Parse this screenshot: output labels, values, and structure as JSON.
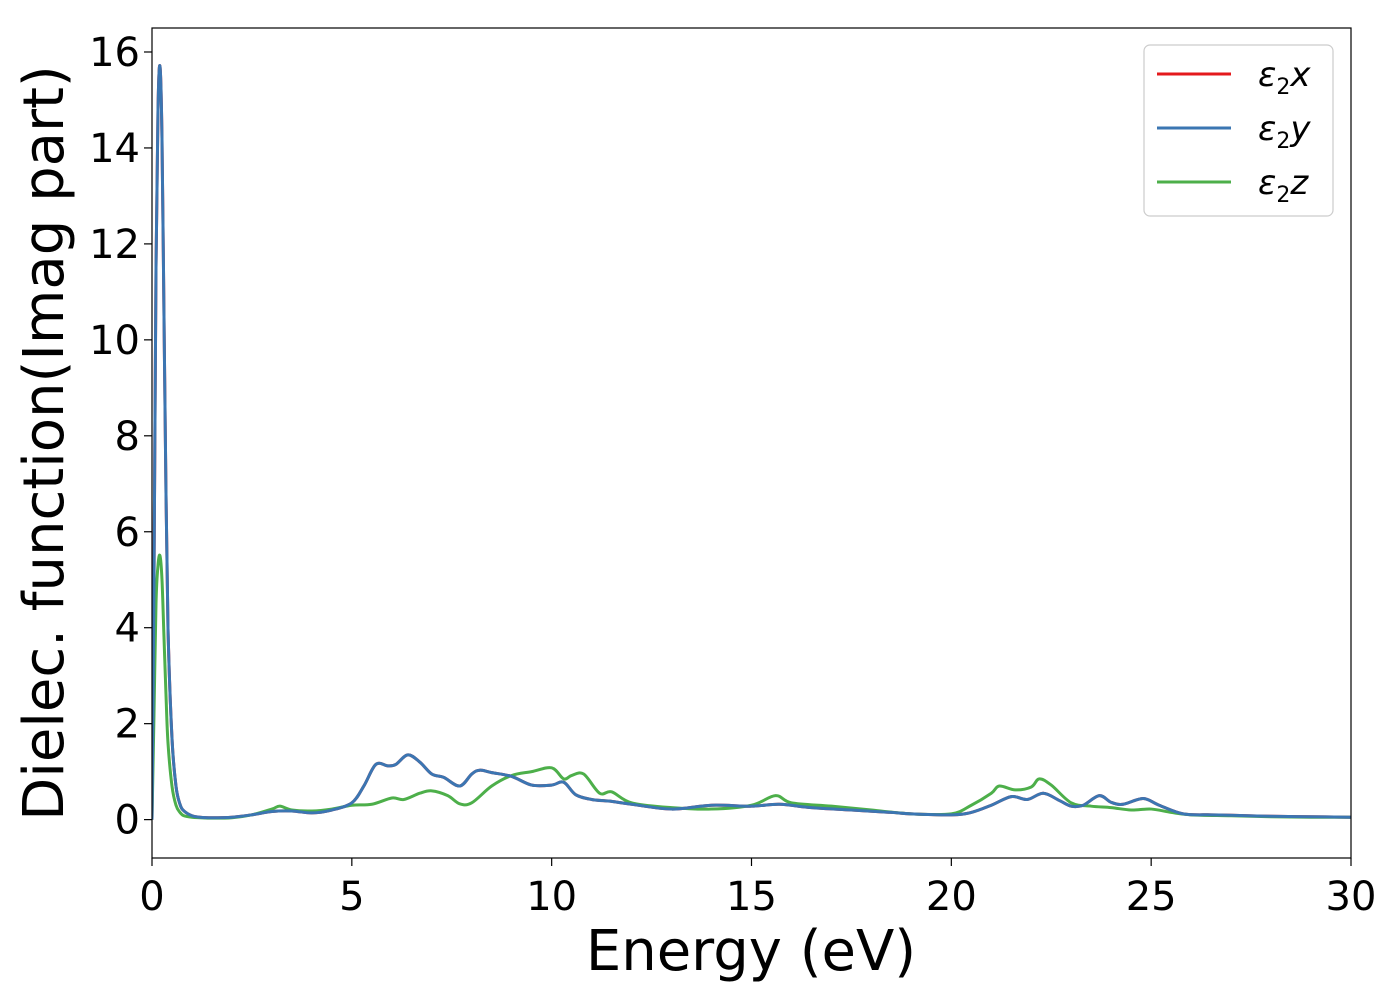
{
  "chart_data": {
    "type": "line",
    "xlabel": "Energy (eV)",
    "ylabel": "Dielec. function(Imag part)",
    "xlim": [
      0,
      30
    ],
    "ylim": [
      -0.8,
      16.5
    ],
    "xticks": [
      0,
      5,
      10,
      15,
      20,
      25,
      30
    ],
    "yticks": [
      0,
      2,
      4,
      6,
      8,
      10,
      12,
      14,
      16
    ],
    "grid": false,
    "legend_position": "top-right",
    "series": [
      {
        "name": "ε2x",
        "legend_symbol": "ε",
        "legend_subscript": "2",
        "legend_var": "x",
        "color": "#e41a1c",
        "x": [
          0,
          0.05,
          0.1,
          0.15,
          0.2,
          0.25,
          0.3,
          0.35,
          0.4,
          0.5,
          0.6,
          0.7,
          0.8,
          1.0,
          1.2,
          1.5,
          2.0,
          2.5,
          3.0,
          3.5,
          4.0,
          4.5,
          5.0,
          5.3,
          5.6,
          5.9,
          6.1,
          6.4,
          6.7,
          7.0,
          7.3,
          7.7,
          8.0,
          8.2,
          8.5,
          9.0,
          9.5,
          10.0,
          10.3,
          10.6,
          11.0,
          11.5,
          12.0,
          13.0,
          14.0,
          15.0,
          15.7,
          16.5,
          17.5,
          18.5,
          19.0,
          20.0,
          20.5,
          21.0,
          21.5,
          21.9,
          22.3,
          22.7,
          23.0,
          23.3,
          23.7,
          24.0,
          24.3,
          24.8,
          25.2,
          25.8,
          26.5,
          27.0,
          28.0,
          29.0,
          30.0
        ],
        "values": [
          0,
          5.0,
          11.5,
          14.8,
          15.7,
          14.2,
          10.5,
          6.8,
          4.0,
          1.7,
          0.7,
          0.32,
          0.18,
          0.08,
          0.05,
          0.04,
          0.05,
          0.1,
          0.17,
          0.18,
          0.14,
          0.2,
          0.35,
          0.7,
          1.15,
          1.12,
          1.15,
          1.35,
          1.2,
          0.95,
          0.88,
          0.7,
          0.95,
          1.03,
          0.98,
          0.9,
          0.72,
          0.72,
          0.78,
          0.52,
          0.42,
          0.38,
          0.32,
          0.22,
          0.3,
          0.28,
          0.32,
          0.25,
          0.2,
          0.15,
          0.12,
          0.1,
          0.15,
          0.3,
          0.48,
          0.42,
          0.55,
          0.4,
          0.28,
          0.3,
          0.5,
          0.36,
          0.32,
          0.44,
          0.3,
          0.12,
          0.1,
          0.09,
          0.07,
          0.06,
          0.05
        ]
      },
      {
        "name": "ε2y",
        "legend_symbol": "ε",
        "legend_subscript": "2",
        "legend_var": "y",
        "color": "#3b76b2",
        "x": [
          0,
          0.05,
          0.1,
          0.15,
          0.2,
          0.25,
          0.3,
          0.35,
          0.4,
          0.5,
          0.6,
          0.7,
          0.8,
          1.0,
          1.2,
          1.5,
          2.0,
          2.5,
          3.0,
          3.5,
          4.0,
          4.5,
          5.0,
          5.3,
          5.6,
          5.9,
          6.1,
          6.4,
          6.7,
          7.0,
          7.3,
          7.7,
          8.0,
          8.2,
          8.5,
          9.0,
          9.5,
          10.0,
          10.3,
          10.6,
          11.0,
          11.5,
          12.0,
          13.0,
          14.0,
          15.0,
          15.7,
          16.5,
          17.5,
          18.5,
          19.0,
          20.0,
          20.5,
          21.0,
          21.5,
          21.9,
          22.3,
          22.7,
          23.0,
          23.3,
          23.7,
          24.0,
          24.3,
          24.8,
          25.2,
          25.8,
          26.5,
          27.0,
          28.0,
          29.0,
          30.0
        ],
        "values": [
          0,
          5.0,
          11.5,
          14.8,
          15.7,
          14.2,
          10.5,
          6.8,
          4.0,
          1.7,
          0.7,
          0.32,
          0.18,
          0.08,
          0.05,
          0.04,
          0.05,
          0.1,
          0.17,
          0.18,
          0.14,
          0.2,
          0.35,
          0.7,
          1.15,
          1.12,
          1.15,
          1.35,
          1.2,
          0.95,
          0.88,
          0.7,
          0.95,
          1.03,
          0.98,
          0.9,
          0.72,
          0.72,
          0.78,
          0.52,
          0.42,
          0.38,
          0.32,
          0.22,
          0.3,
          0.28,
          0.32,
          0.25,
          0.2,
          0.15,
          0.12,
          0.1,
          0.15,
          0.3,
          0.48,
          0.42,
          0.55,
          0.4,
          0.28,
          0.3,
          0.5,
          0.36,
          0.32,
          0.44,
          0.3,
          0.12,
          0.1,
          0.09,
          0.07,
          0.06,
          0.05
        ]
      },
      {
        "name": "ε2z",
        "legend_symbol": "ε",
        "legend_subscript": "2",
        "legend_var": "z",
        "color": "#4daf4a",
        "x": [
          0,
          0.05,
          0.1,
          0.15,
          0.2,
          0.25,
          0.3,
          0.35,
          0.4,
          0.5,
          0.6,
          0.7,
          0.8,
          1.0,
          1.2,
          1.5,
          2.0,
          2.5,
          3.0,
          3.2,
          3.5,
          4.0,
          4.5,
          5.0,
          5.5,
          6.0,
          6.3,
          6.7,
          7.0,
          7.4,
          7.7,
          8.0,
          8.5,
          9.0,
          9.5,
          10.0,
          10.3,
          10.5,
          10.8,
          11.2,
          11.5,
          12.0,
          13.0,
          14.0,
          15.0,
          15.6,
          16.0,
          17.0,
          18.0,
          19.0,
          20.0,
          20.5,
          21.0,
          21.2,
          21.6,
          22.0,
          22.2,
          22.5,
          23.0,
          23.5,
          24.0,
          24.5,
          25.0,
          25.5,
          26.0,
          27.0,
          28.0,
          29.0,
          30.0
        ],
        "values": [
          0,
          2.2,
          4.5,
          5.3,
          5.5,
          5.0,
          3.8,
          2.6,
          1.6,
          0.7,
          0.3,
          0.15,
          0.08,
          0.05,
          0.04,
          0.03,
          0.04,
          0.1,
          0.22,
          0.28,
          0.2,
          0.18,
          0.22,
          0.3,
          0.32,
          0.45,
          0.42,
          0.55,
          0.6,
          0.5,
          0.33,
          0.35,
          0.7,
          0.92,
          1.0,
          1.08,
          0.85,
          0.92,
          0.95,
          0.55,
          0.58,
          0.35,
          0.25,
          0.22,
          0.3,
          0.5,
          0.35,
          0.28,
          0.2,
          0.12,
          0.12,
          0.3,
          0.55,
          0.7,
          0.62,
          0.68,
          0.85,
          0.72,
          0.35,
          0.28,
          0.25,
          0.2,
          0.22,
          0.15,
          0.1,
          0.08,
          0.06,
          0.05,
          0.05
        ]
      }
    ]
  }
}
